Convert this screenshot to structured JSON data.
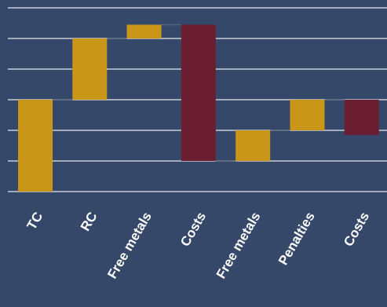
{
  "colors": {
    "background": "#36486a",
    "gridline": "#c9ced8",
    "gold": "#c9961a",
    "maroon": "#6b1e32",
    "connector": "#55627a",
    "label": "#ffffff"
  },
  "chart_data": {
    "type": "bar",
    "subtype": "waterfall",
    "title": "",
    "xlabel": "",
    "ylabel": "",
    "ylim": [
      0,
      6
    ],
    "grid": true,
    "legend": "none",
    "categories": [
      "TC",
      "RC",
      "Free metals",
      "Costs",
      "Free metals",
      "Penalties",
      "Costs"
    ],
    "bars": [
      {
        "category": "TC",
        "start": 0,
        "end": 3.0,
        "color": "gold"
      },
      {
        "category": "RC",
        "start": 3.0,
        "end": 5.0,
        "color": "gold"
      },
      {
        "category": "Free metals",
        "start": 5.0,
        "end": 5.45,
        "color": "gold"
      },
      {
        "category": "Costs",
        "start": 5.45,
        "end": 1.0,
        "color": "maroon"
      },
      {
        "category": "Free metals",
        "start": 1.0,
        "end": 2.0,
        "color": "gold"
      },
      {
        "category": "Penalties",
        "start": 2.0,
        "end": 3.0,
        "color": "gold"
      },
      {
        "category": "Costs",
        "start": 3.0,
        "end": 1.85,
        "color": "maroon"
      }
    ]
  }
}
